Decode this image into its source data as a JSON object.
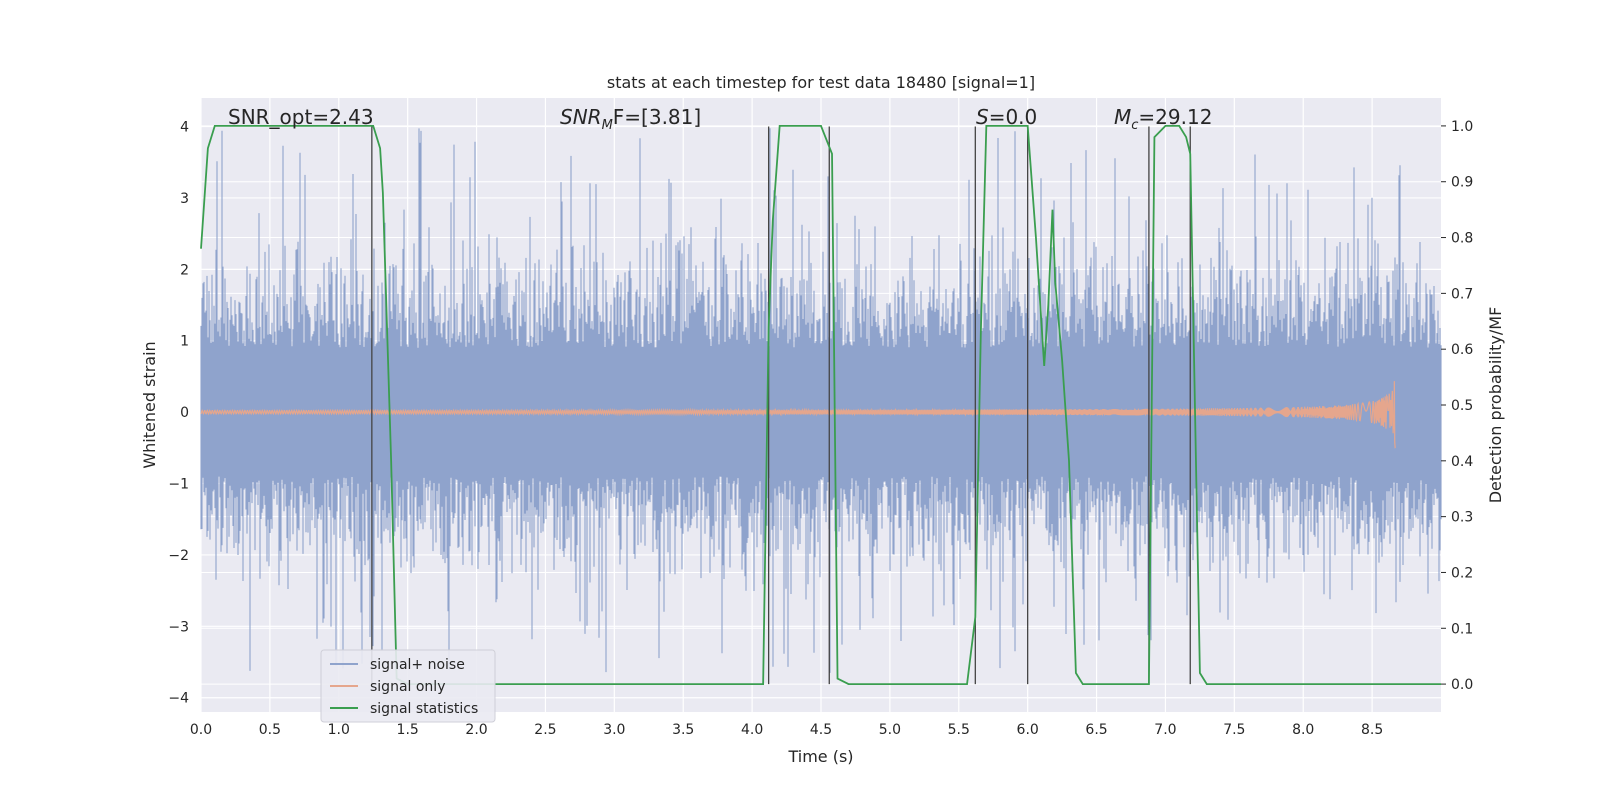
{
  "chart_data": {
    "type": "line",
    "title": "stats at each timestep for test data 18480 [signal=1]",
    "xlabel": "Time (s)",
    "ylabel_left": "Whitened strain",
    "ylabel_right": "Detection probability/MF",
    "xlim": [
      0.0,
      9.0
    ],
    "ylim_left": [
      -4.2,
      4.4
    ],
    "ylim_right": [
      -0.05,
      1.05
    ],
    "x_ticks": [
      "0.0",
      "0.5",
      "1.0",
      "1.5",
      "2.0",
      "2.5",
      "3.0",
      "3.5",
      "4.0",
      "4.5",
      "5.0",
      "5.5",
      "6.0",
      "6.5",
      "7.0",
      "7.5",
      "8.0",
      "8.5"
    ],
    "y_left_ticks": [
      "4",
      "3",
      "2",
      "1",
      "0",
      "−1",
      "−2",
      "−3",
      "−4"
    ],
    "y_right_ticks": [
      "1.0",
      "0.9",
      "0.8",
      "0.7",
      "0.6",
      "0.5",
      "0.4",
      "0.3",
      "0.2",
      "0.1",
      "0.0"
    ],
    "grid": true,
    "legend_position": "bottom-left",
    "annotations": {
      "snr_opt": "SNR_opt=2.43",
      "snr_mf_sym": "SNR",
      "snr_mf_sub": "M",
      "snr_mf_rest": "F=[3.81]",
      "s_sym": "S",
      "s_rest": "=0.0",
      "mc_sym": "M",
      "mc_sub": "c",
      "mc_rest": "=29.12"
    },
    "series": [
      {
        "name": "signal+ noise",
        "color": "#8fa3cc",
        "note_noise_sigma": 1.0,
        "spike_max": 4.0
      },
      {
        "name": "signal only",
        "color": "#e5a68d",
        "merger_time": 8.67,
        "peak_amplitude": 0.55
      },
      {
        "name": "signal statistics",
        "color": "#3a9e4f",
        "axis": "right",
        "x": [
          0.0,
          0.05,
          0.1,
          0.2,
          0.5,
          1.0,
          1.2,
          1.25,
          1.3,
          1.32,
          1.38,
          1.42,
          1.5,
          3.0,
          3.2,
          3.3,
          4.0,
          4.08,
          4.12,
          4.15,
          4.2,
          4.5,
          4.58,
          4.62,
          4.7,
          5.0,
          5.56,
          5.62,
          5.66,
          5.7,
          6.0,
          6.06,
          6.12,
          6.15,
          6.18,
          6.2,
          6.25,
          6.3,
          6.35,
          6.4,
          6.88,
          6.92,
          7.0,
          7.1,
          7.15,
          7.18,
          7.25,
          7.3,
          9.0
        ],
        "values": [
          0.78,
          0.96,
          1.0,
          1.0,
          1.0,
          1.0,
          1.0,
          1.0,
          0.96,
          0.88,
          0.4,
          0.01,
          0.0,
          0.0,
          0.0,
          0.0,
          0.0,
          0.0,
          0.64,
          0.83,
          1.0,
          1.0,
          0.95,
          0.01,
          0.0,
          0.0,
          0.0,
          0.12,
          0.63,
          1.0,
          1.0,
          0.8,
          0.57,
          0.68,
          0.85,
          0.72,
          0.58,
          0.4,
          0.02,
          0.0,
          0.0,
          0.98,
          1.0,
          1.0,
          0.98,
          0.95,
          0.02,
          0.0,
          0.0
        ]
      }
    ],
    "vertical_lines": [
      1.24,
      4.12,
      4.56,
      5.62,
      6.0,
      6.88,
      7.18
    ]
  }
}
